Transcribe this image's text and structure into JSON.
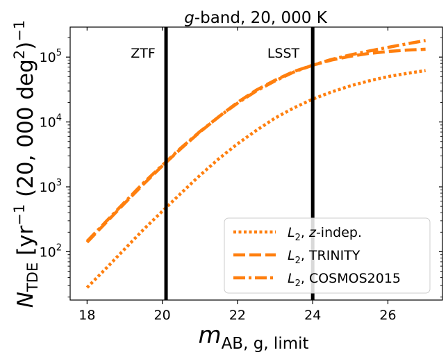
{
  "chart_data": {
    "type": "line",
    "title_italic": "g",
    "title_rest": "-band, 20, 000 K",
    "xlabel_main": "m",
    "xlabel_sub": "AB, g, limit",
    "ylabel_main": "N",
    "ylabel_sub": "TDE",
    "ylabel_rest": " [yr",
    "ylabel_exp1": "−1",
    "ylabel_mid": " (20, 000 deg",
    "ylabel_exp2": "2",
    "ylabel_end": ")",
    "ylabel_exp3": "−1",
    "xlim": [
      17.55,
      27.45
    ],
    "ylim": [
      18,
      290000
    ],
    "yscale": "log",
    "xticks": [
      18,
      20,
      22,
      24,
      26
    ],
    "xtick_labels": [
      "18",
      "20",
      "22",
      "24",
      "26"
    ],
    "yticks": [
      {
        "value": 100,
        "base": "10",
        "exp": "2"
      },
      {
        "value": 1000,
        "base": "10",
        "exp": "3"
      },
      {
        "value": 10000,
        "base": "10",
        "exp": "4"
      },
      {
        "value": 100000,
        "base": "10",
        "exp": "5"
      }
    ],
    "vlines": [
      {
        "x": 20.1,
        "label": "ZTF"
      },
      {
        "x": 24.0,
        "label": "LSST"
      }
    ],
    "x": [
      18,
      18.5,
      19,
      19.5,
      20,
      20.5,
      21,
      21.5,
      22,
      22.5,
      23,
      23.5,
      24,
      24.5,
      25,
      25.5,
      26,
      26.5,
      27
    ],
    "series": [
      {
        "name_var": "L",
        "name_sub": "2",
        "name_rest": ", ",
        "name_italic": "z",
        "name_tail": "-indep.",
        "style": "dotted",
        "values": [
          28,
          55,
          110,
          220,
          420,
          800,
          1500,
          2700,
          4600,
          7400,
          11500,
          16500,
          22500,
          29000,
          36000,
          43000,
          50000,
          56000,
          62000
        ]
      },
      {
        "name_var": "L",
        "name_sub": "2",
        "name_rest": ", TRINITY",
        "name_italic": "",
        "name_tail": "",
        "style": "dashed",
        "values": [
          140,
          280,
          560,
          1100,
          2100,
          3900,
          7000,
          12000,
          20000,
          31000,
          44000,
          60000,
          75000,
          90000,
          103000,
          114000,
          122000,
          128000,
          132000
        ]
      },
      {
        "name_var": "L",
        "name_sub": "2",
        "name_rest": ", COSMOS2015",
        "name_italic": "",
        "name_tail": "",
        "style": "dashdot",
        "values": [
          145,
          290,
          580,
          1150,
          2150,
          4000,
          7100,
          12000,
          19500,
          30000,
          43000,
          59000,
          75000,
          92000,
          108000,
          124000,
          141000,
          160000,
          180000
        ]
      }
    ],
    "colors": {
      "line": "#ff7f0e",
      "vline": "#000000",
      "axis": "#000000"
    },
    "legend_position": "lower-right"
  }
}
